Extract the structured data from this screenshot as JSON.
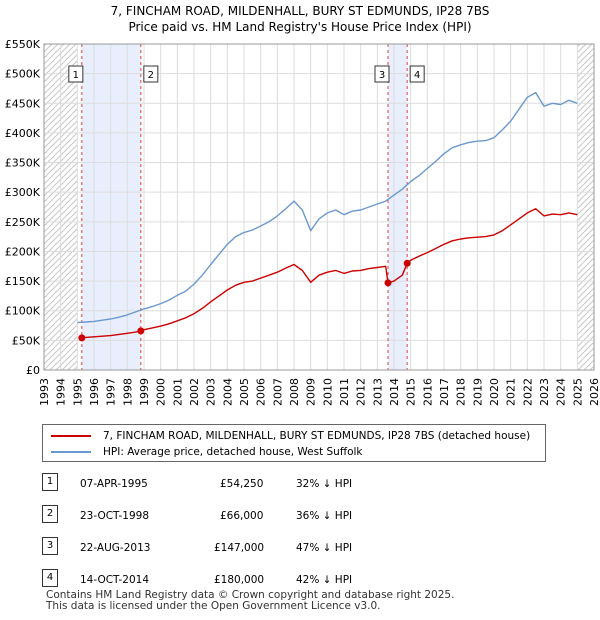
{
  "header": {
    "title_line1": "7, FINCHAM ROAD, MILDENHALL, BURY ST EDMUNDS, IP28 7BS",
    "title_line2": "Price paid vs. HM Land Registry's House Price Index (HPI)"
  },
  "legend": {
    "items": [
      {
        "label": "7, FINCHAM ROAD, MILDENHALL, BURY ST EDMUNDS, IP28 7BS (detached house)",
        "color": "#cc0000"
      },
      {
        "label": "HPI: Average price, detached house, West Suffolk",
        "color": "#6a99d0"
      }
    ]
  },
  "sales": [
    {
      "num": "1",
      "date": "07-APR-1995",
      "price": "£54,250",
      "hpi": "32% ↓ HPI"
    },
    {
      "num": "2",
      "date": "23-OCT-1998",
      "price": "£66,000",
      "hpi": "36% ↓ HPI"
    },
    {
      "num": "3",
      "date": "22-AUG-2013",
      "price": "£147,000",
      "hpi": "47% ↓ HPI"
    },
    {
      "num": "4",
      "date": "14-OCT-2014",
      "price": "£180,000",
      "hpi": "42% ↓ HPI"
    }
  ],
  "footer": {
    "line1": "Contains HM Land Registry data © Crown copyright and database right 2025.",
    "line2": "This data is licensed under the Open Government Licence v3.0."
  },
  "chart_data": {
    "type": "line",
    "title": "7, FINCHAM ROAD, MILDENHALL, BURY ST EDMUNDS, IP28 7BS — Price paid vs. HM Land Registry's House Price Index (HPI)",
    "xlabel": "",
    "ylabel": "",
    "xlim": [
      1993,
      2026
    ],
    "ylim": [
      0,
      550000
    ],
    "x_ticks": [
      1993,
      1994,
      1995,
      1996,
      1997,
      1998,
      1999,
      2000,
      2001,
      2002,
      2003,
      2004,
      2005,
      2006,
      2007,
      2008,
      2009,
      2010,
      2011,
      2012,
      2013,
      2014,
      2015,
      2016,
      2017,
      2018,
      2019,
      2020,
      2021,
      2022,
      2023,
      2024,
      2025,
      2026
    ],
    "y_ticks": [
      {
        "value": 0,
        "label": "£0"
      },
      {
        "value": 50000,
        "label": "£50K"
      },
      {
        "value": 100000,
        "label": "£100K"
      },
      {
        "value": 150000,
        "label": "£150K"
      },
      {
        "value": 200000,
        "label": "£200K"
      },
      {
        "value": 250000,
        "label": "£250K"
      },
      {
        "value": 300000,
        "label": "£300K"
      },
      {
        "value": 350000,
        "label": "£350K"
      },
      {
        "value": 400000,
        "label": "£400K"
      },
      {
        "value": 450000,
        "label": "£450K"
      },
      {
        "value": 500000,
        "label": "£500K"
      },
      {
        "value": 550000,
        "label": "£550K"
      }
    ],
    "grid": true,
    "shaded_spans": [
      {
        "from": 1995.27,
        "to": 1998.81,
        "color": "#e8eefb"
      },
      {
        "from": 2013.64,
        "to": 2014.79,
        "color": "#e8eefb"
      }
    ],
    "hatched_spans": [
      {
        "from": 1993,
        "to": 1995.0
      },
      {
        "from": 2025.0,
        "to": 2026
      }
    ],
    "sale_markers": [
      {
        "label": "1",
        "x": 1995.27,
        "y": 54250
      },
      {
        "label": "2",
        "x": 1998.81,
        "y": 66000
      },
      {
        "label": "3",
        "x": 2013.64,
        "y": 147000
      },
      {
        "label": "4",
        "x": 2014.79,
        "y": 180000
      }
    ],
    "series": [
      {
        "name": "HPI: Average price, detached house, West Suffolk",
        "color": "#6a99d0",
        "x": [
          1995.0,
          1995.5,
          1996.0,
          1996.5,
          1997.0,
          1997.5,
          1998.0,
          1998.5,
          1999.0,
          1999.5,
          2000.0,
          2000.5,
          2001.0,
          2001.5,
          2002.0,
          2002.5,
          2003.0,
          2003.5,
          2004.0,
          2004.5,
          2005.0,
          2005.5,
          2006.0,
          2006.5,
          2007.0,
          2007.5,
          2008.0,
          2008.5,
          2009.0,
          2009.5,
          2010.0,
          2010.5,
          2011.0,
          2011.5,
          2012.0,
          2012.5,
          2013.0,
          2013.5,
          2014.0,
          2014.5,
          2015.0,
          2015.5,
          2016.0,
          2016.5,
          2017.0,
          2017.5,
          2018.0,
          2018.5,
          2019.0,
          2019.5,
          2020.0,
          2020.5,
          2021.0,
          2021.5,
          2022.0,
          2022.5,
          2023.0,
          2023.5,
          2024.0,
          2024.5,
          2025.0
        ],
        "y": [
          80000,
          81000,
          82000,
          84000,
          86000,
          89000,
          93000,
          98000,
          103000,
          107000,
          112000,
          118000,
          126000,
          133000,
          145000,
          160000,
          178000,
          195000,
          212000,
          225000,
          232000,
          236000,
          243000,
          250000,
          260000,
          272000,
          285000,
          270000,
          235000,
          255000,
          265000,
          270000,
          262000,
          268000,
          270000,
          275000,
          280000,
          285000,
          295000,
          305000,
          318000,
          328000,
          340000,
          352000,
          365000,
          375000,
          380000,
          384000,
          386000,
          387000,
          392000,
          405000,
          420000,
          440000,
          460000,
          468000,
          445000,
          450000,
          448000,
          455000,
          450000
        ]
      },
      {
        "name": "7, FINCHAM ROAD, MILDENHALL, BURY ST EDMUNDS, IP28 7BS (detached house)",
        "color": "#cc0000",
        "x": [
          1995.27,
          1995.5,
          1996.0,
          1996.5,
          1997.0,
          1997.5,
          1998.0,
          1998.5,
          1998.81,
          1999.0,
          1999.5,
          2000.0,
          2000.5,
          2001.0,
          2001.5,
          2002.0,
          2002.5,
          2003.0,
          2003.5,
          2004.0,
          2004.5,
          2005.0,
          2005.5,
          2006.0,
          2006.5,
          2007.0,
          2007.5,
          2008.0,
          2008.5,
          2009.0,
          2009.5,
          2010.0,
          2010.5,
          2011.0,
          2011.5,
          2012.0,
          2012.5,
          2013.0,
          2013.5,
          2013.64,
          2014.0,
          2014.5,
          2014.79,
          2015.0,
          2015.5,
          2016.0,
          2016.5,
          2017.0,
          2017.5,
          2018.0,
          2018.5,
          2019.0,
          2019.5,
          2020.0,
          2020.5,
          2021.0,
          2021.5,
          2022.0,
          2022.5,
          2023.0,
          2023.5,
          2024.0,
          2024.5,
          2025.0
        ],
        "y": [
          54250,
          55000,
          56000,
          57000,
          58000,
          60000,
          62000,
          64000,
          66000,
          68000,
          71000,
          74000,
          78000,
          83000,
          88000,
          95000,
          104000,
          115000,
          125000,
          135000,
          143000,
          148000,
          150000,
          155000,
          160000,
          165000,
          172000,
          178000,
          168000,
          148000,
          160000,
          165000,
          168000,
          163000,
          167000,
          168000,
          171000,
          173000,
          175000,
          147000,
          150000,
          160000,
          180000,
          185000,
          192000,
          198000,
          205000,
          212000,
          218000,
          221000,
          223000,
          224000,
          225000,
          228000,
          235000,
          245000,
          255000,
          265000,
          272000,
          260000,
          263000,
          262000,
          265000,
          262000
        ]
      }
    ]
  }
}
